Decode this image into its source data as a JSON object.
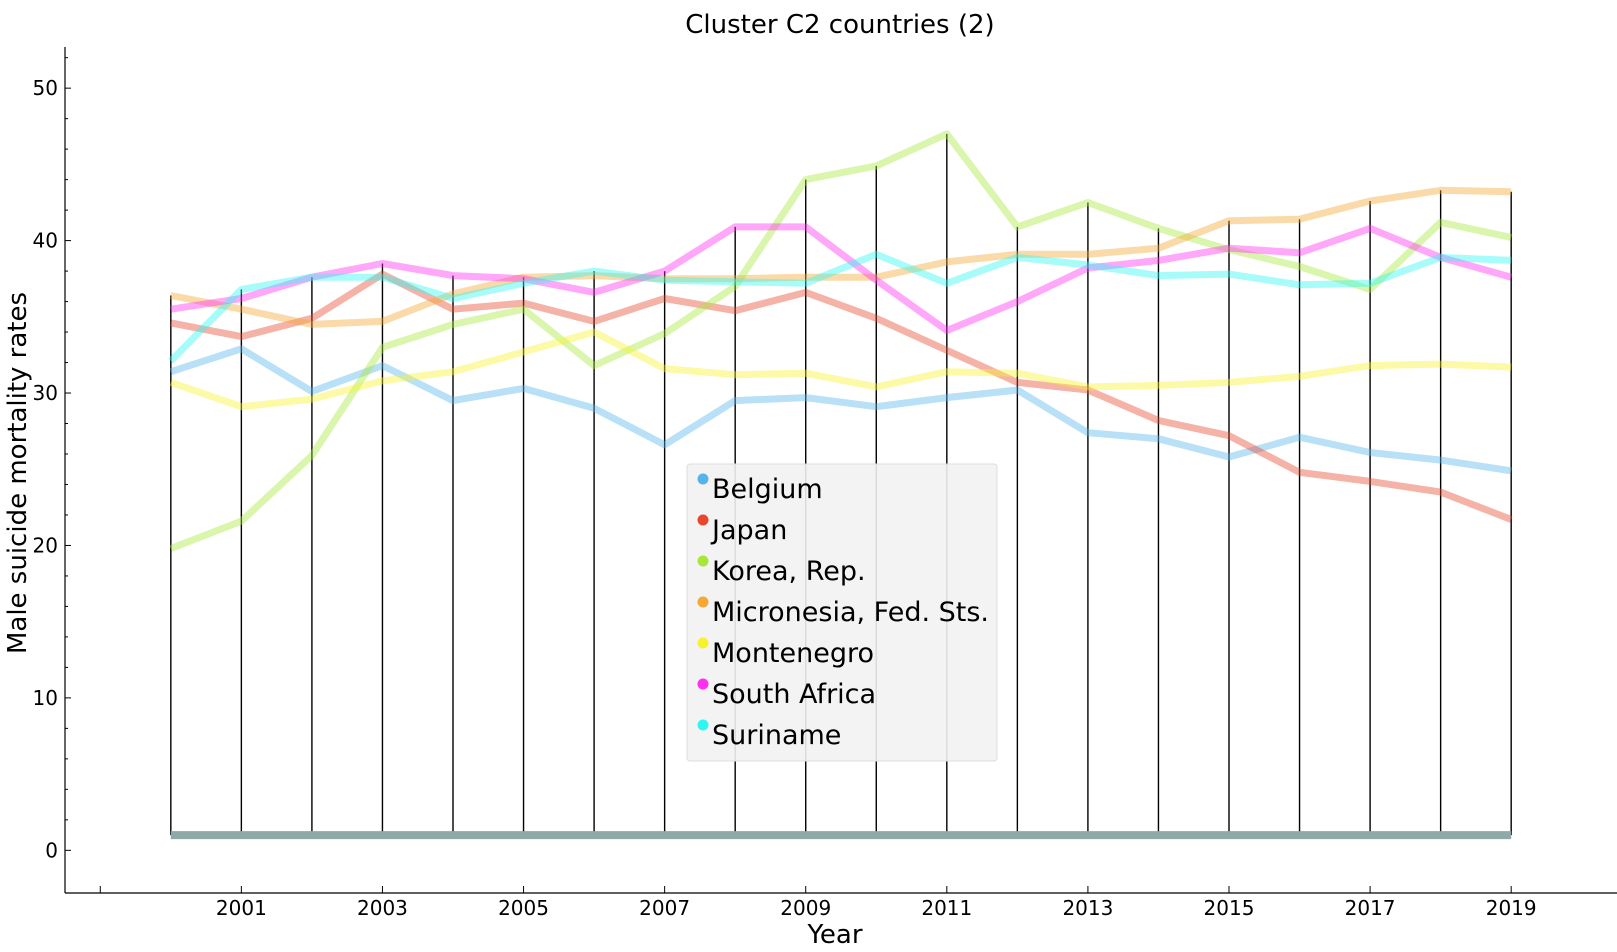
{
  "chart_data": {
    "type": "line",
    "title": "Cluster C2 countries (2)",
    "xlabel": "Year",
    "ylabel": "Male suicide mortality rates",
    "x": [
      2000,
      2001,
      2002,
      2003,
      2004,
      2005,
      2006,
      2007,
      2008,
      2009,
      2010,
      2011,
      2012,
      2013,
      2014,
      2015,
      2016,
      2017,
      2018,
      2019
    ],
    "xticks": [
      2001,
      2003,
      2005,
      2007,
      2009,
      2011,
      2013,
      2015,
      2017,
      2019
    ],
    "yticks": [
      0,
      10,
      20,
      30,
      40,
      50
    ],
    "xlim": [
      1998.5,
      2020.5
    ],
    "ylim": [
      -2.8,
      52.7
    ],
    "grid": false,
    "legend_position": "center",
    "stems": {
      "base_value": 1,
      "color": "#8fa8a8"
    },
    "series": [
      {
        "name": "Belgium",
        "color": "#56b4e9",
        "values": [
          31.4,
          32.9,
          30.1,
          31.8,
          29.5,
          30.3,
          29.0,
          26.6,
          29.5,
          29.7,
          29.1,
          29.7,
          30.2,
          27.4,
          27.0,
          25.8,
          27.1,
          26.1,
          25.6,
          24.9
        ]
      },
      {
        "name": "Japan",
        "color": "#e8472e",
        "values": [
          34.6,
          33.7,
          34.9,
          37.8,
          35.5,
          35.9,
          34.7,
          36.2,
          35.4,
          36.6,
          34.9,
          32.8,
          30.7,
          30.2,
          28.2,
          27.2,
          24.8,
          24.2,
          23.5,
          21.7
        ]
      },
      {
        "name": "Korea, Rep.",
        "color": "#a8e63a",
        "values": [
          19.8,
          21.6,
          25.9,
          33.0,
          34.5,
          35.5,
          31.8,
          33.9,
          37.0,
          44.0,
          44.9,
          47.0,
          40.9,
          42.5,
          40.8,
          39.4,
          38.3,
          36.8,
          41.2,
          40.2
        ]
      },
      {
        "name": "Micronesia, Fed. Sts.",
        "color": "#f5a833",
        "values": [
          36.4,
          35.5,
          34.5,
          34.7,
          36.5,
          37.6,
          37.7,
          37.5,
          37.5,
          37.6,
          37.6,
          38.6,
          39.1,
          39.1,
          39.5,
          41.3,
          41.4,
          42.6,
          43.3,
          43.2
        ]
      },
      {
        "name": "Montenegro",
        "color": "#f7f22e",
        "values": [
          30.7,
          29.1,
          29.6,
          30.8,
          31.4,
          32.7,
          34.0,
          31.6,
          31.2,
          31.3,
          30.4,
          31.4,
          31.3,
          30.4,
          30.5,
          30.7,
          31.1,
          31.8,
          31.9,
          31.7
        ]
      },
      {
        "name": "South Africa",
        "color": "#ff2ef0",
        "values": [
          35.5,
          36.2,
          37.6,
          38.5,
          37.7,
          37.5,
          36.6,
          38.0,
          40.9,
          40.9,
          37.4,
          34.1,
          36.0,
          38.2,
          38.7,
          39.5,
          39.2,
          40.8,
          38.9,
          37.6
        ]
      },
      {
        "name": "Suriname",
        "color": "#2ef7f2",
        "values": [
          32.1,
          36.8,
          37.6,
          37.6,
          36.2,
          37.2,
          38.0,
          37.4,
          37.3,
          37.2,
          39.1,
          37.2,
          38.9,
          38.4,
          37.7,
          37.8,
          37.1,
          37.2,
          38.9,
          38.7
        ]
      }
    ]
  }
}
